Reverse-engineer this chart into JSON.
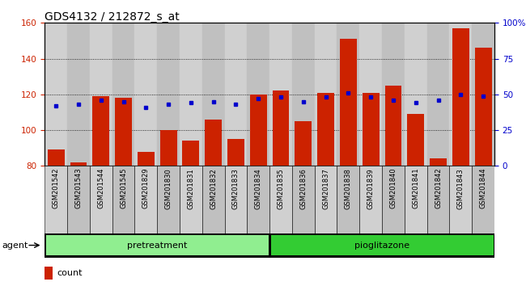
{
  "title": "GDS4132 / 212872_s_at",
  "samples": [
    "GSM201542",
    "GSM201543",
    "GSM201544",
    "GSM201545",
    "GSM201829",
    "GSM201830",
    "GSM201831",
    "GSM201832",
    "GSM201833",
    "GSM201834",
    "GSM201835",
    "GSM201836",
    "GSM201837",
    "GSM201838",
    "GSM201839",
    "GSM201840",
    "GSM201841",
    "GSM201842",
    "GSM201843",
    "GSM201844"
  ],
  "counts": [
    89,
    82,
    119,
    118,
    88,
    100,
    94,
    106,
    95,
    120,
    122,
    105,
    121,
    151,
    121,
    125,
    109,
    84,
    157,
    146
  ],
  "percentile": [
    42,
    43,
    46,
    45,
    41,
    43,
    44,
    45,
    43,
    47,
    48,
    45,
    48,
    51,
    48,
    46,
    44,
    46,
    50,
    49
  ],
  "groups": [
    {
      "label": "pretreatment",
      "start": 0,
      "end": 10,
      "color": "#90ee90"
    },
    {
      "label": "pioglitazone",
      "start": 10,
      "end": 20,
      "color": "#33cc33"
    }
  ],
  "ylim_left": [
    80,
    160
  ],
  "ylim_right": [
    0,
    100
  ],
  "yticks_left": [
    80,
    100,
    120,
    140,
    160
  ],
  "yticks_right": [
    0,
    25,
    50,
    75,
    100
  ],
  "bar_color": "#cc2200",
  "dot_color": "#0000cc",
  "col_bg_even": "#d0d0d0",
  "col_bg_odd": "#c0c0c0",
  "title_fontsize": 10
}
